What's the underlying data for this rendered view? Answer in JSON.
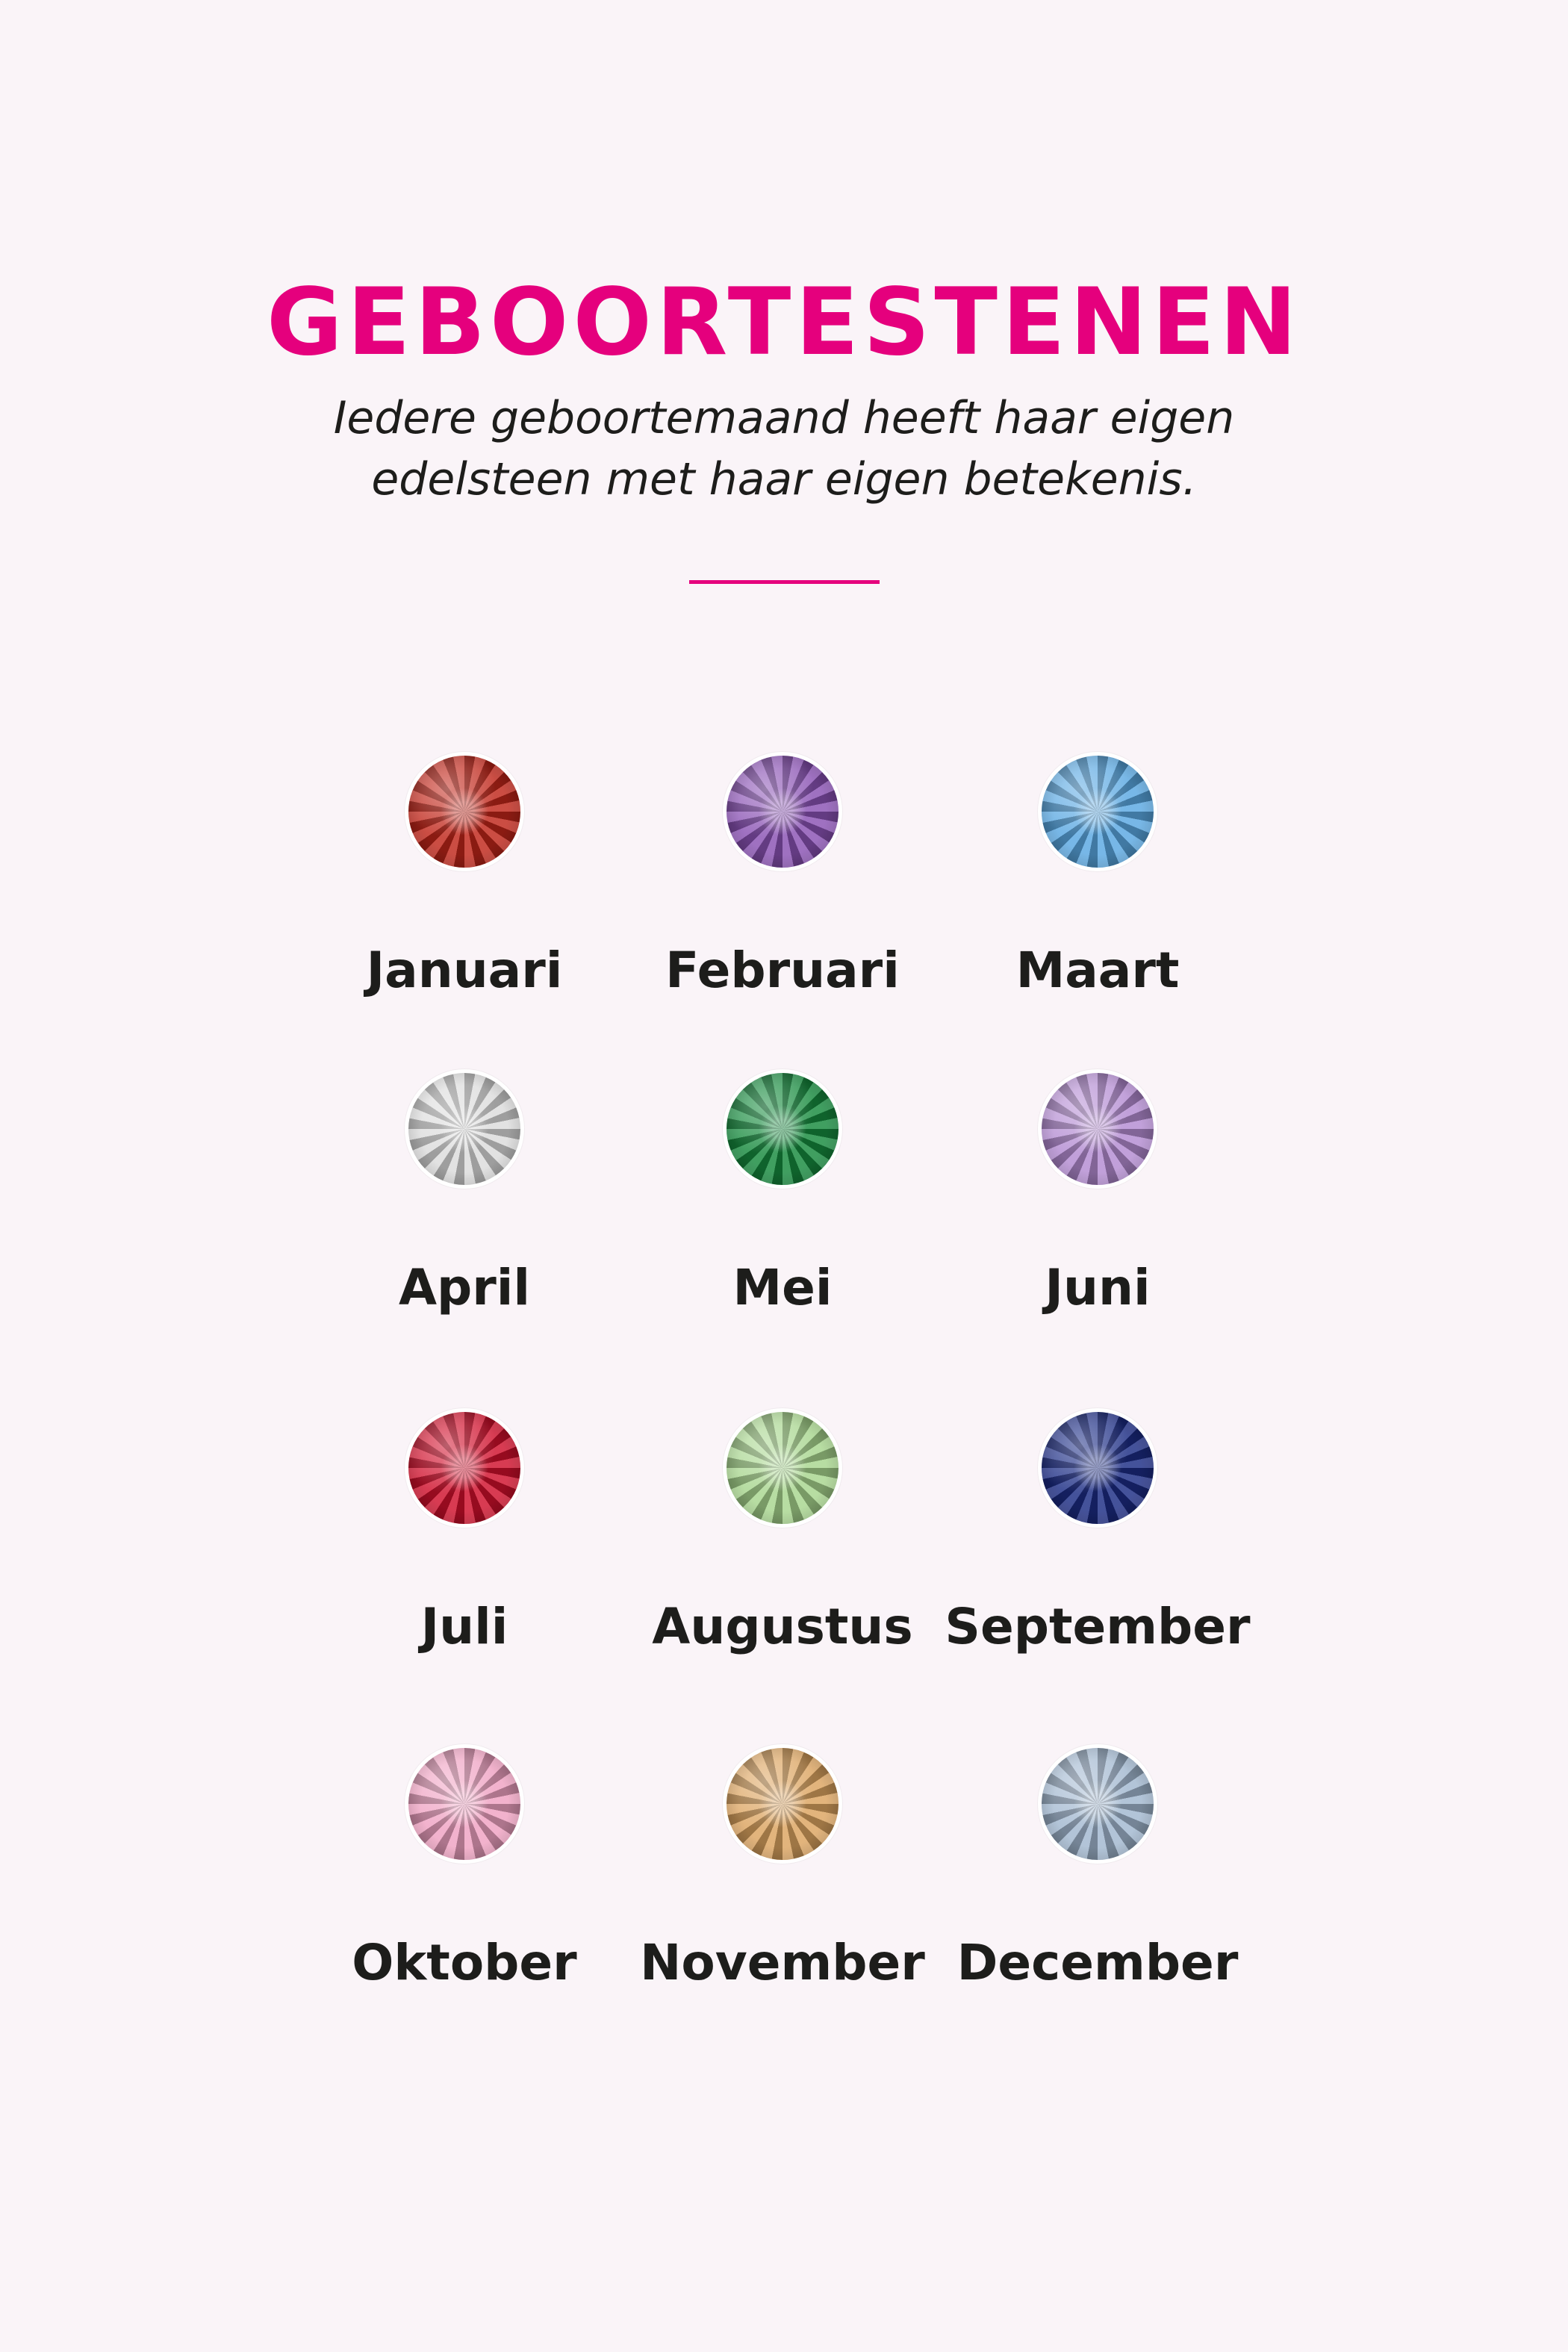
{
  "title": "GEBOORTESTENEN",
  "subtitle": [
    "Iedere geboortemaand heeft haar eigen",
    "edelsteen met haar eigen betekenis."
  ],
  "colors": {
    "accent": "#e5007d",
    "background": "#faf4f8",
    "text": "#1d1d1b"
  },
  "months": [
    {
      "label": "Januari",
      "color": "#c0261a"
    },
    {
      "label": "Februari",
      "color": "#8a52b4"
    },
    {
      "label": "Maart",
      "color": "#5aa8e2"
    },
    {
      "label": "April",
      "color": "#dcdcdc"
    },
    {
      "label": "Mei",
      "color": "#168a3e"
    },
    {
      "label": "Juni",
      "color": "#b48cd2"
    },
    {
      "label": "Juli",
      "color": "#d0102c"
    },
    {
      "label": "Augustus",
      "color": "#a8d68e"
    },
    {
      "label": "September",
      "color": "#1c2c84"
    },
    {
      "label": "Oktober",
      "color": "#f0a2c2"
    },
    {
      "label": "November",
      "color": "#dca460"
    },
    {
      "label": "December",
      "color": "#a2b8d0"
    }
  ]
}
